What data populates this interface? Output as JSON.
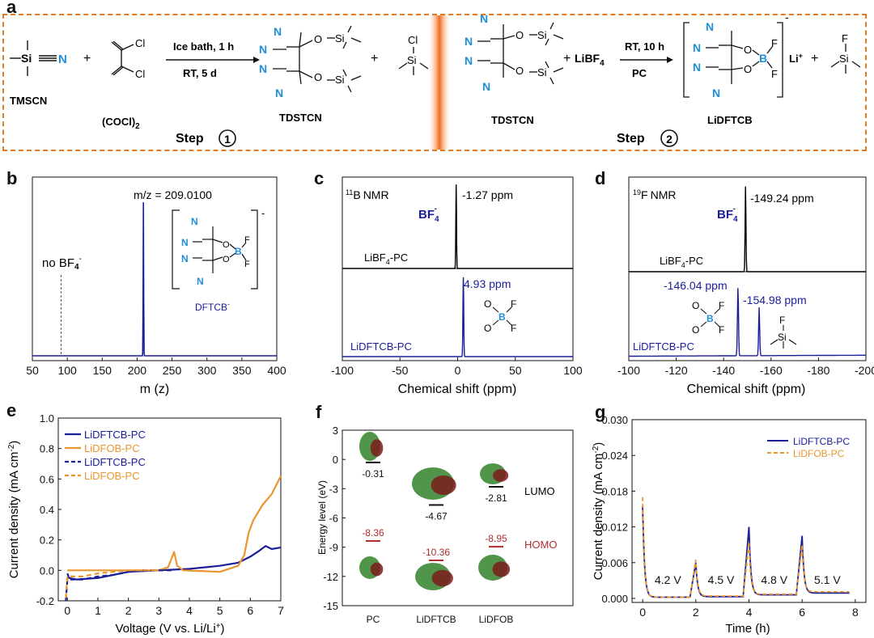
{
  "colors": {
    "navy": "#1a1e99",
    "orange": "#e9962f",
    "red": "#b22c2c",
    "cyan": "#1f8fd8",
    "green": "#3e8a36",
    "dashed_border": "#e07d22"
  },
  "panel_labels": {
    "a": "a",
    "b": "b",
    "c": "c",
    "d": "d",
    "e": "e",
    "f": "f",
    "g": "g"
  },
  "scheme": {
    "tmscn": "TMSCN",
    "oxalyl": "(COCl)",
    "oxalyl_sub": "2",
    "cond1_top": "Ice bath, 1 h",
    "cond1_bottom": "RT, 5 d",
    "tdstcn": "TDSTCN",
    "tdstcn2": "TDSTCN",
    "step": "Step",
    "step1": "1",
    "step2": "2",
    "cond2_top": "RT, 10 h",
    "cond2_bottom": "PC",
    "libf4": "LiBF",
    "libf4_sub": "4",
    "li_plus": "Li",
    "plus": "+",
    "lidftcb": "LiDFTCB",
    "charge": "-",
    "N": "N",
    "Si": "Si",
    "O": "O",
    "Cl": "Cl",
    "F": "F",
    "B": "B"
  },
  "chart_data": [
    {
      "id": "b",
      "type": "line",
      "xlabel": "m (z)",
      "xlim": [
        50,
        400
      ],
      "x_ticks": [
        "50",
        "100",
        "150",
        "200",
        "250",
        "300",
        "350",
        "400"
      ],
      "annotations": {
        "peak": "m/z = 209.0100",
        "no_bf4": "no BF",
        "anion": "DFTCB",
        "charge": "-"
      },
      "series": [
        {
          "color": "#1a1e99",
          "peaks": [
            {
              "x": 209.01,
              "height": 0.95
            }
          ],
          "baseline": 0.03
        }
      ],
      "marker_line": {
        "x": 91
      }
    },
    {
      "id": "c",
      "type": "line",
      "title": "NMR",
      "title_sup": "11",
      "title_nucleus": "B",
      "xlabel": "Chemical shift  (ppm)",
      "xlim": [
        -100,
        100
      ],
      "x_ticks": [
        "-100",
        "-50",
        "0",
        "50",
        "100"
      ],
      "series": [
        {
          "name": "LiBF4-PC",
          "label": "LiBF",
          "label_sub": "4",
          "label_tail": "-PC",
          "color": "#000000",
          "peak_ppm": -1.27,
          "peak_label": "-1.27 ppm",
          "species": "BF"
        },
        {
          "name": "LiDFTCB-PC",
          "label": "LiDFTCB-PC",
          "color": "#1a1e99",
          "peak_ppm": 4.93,
          "peak_label": "4.93 ppm"
        }
      ]
    },
    {
      "id": "d",
      "type": "line",
      "title": "NMR",
      "title_sup": "19",
      "title_nucleus": "F",
      "xlabel": "Chemical shift  (ppm)",
      "xlim": [
        -100,
        -200
      ],
      "x_ticks": [
        "-100",
        "-120",
        "-140",
        "-160",
        "-180",
        "-200"
      ],
      "series": [
        {
          "name": "LiBF4-PC",
          "label": "LiBF",
          "label_sub": "4",
          "label_tail": "-PC",
          "color": "#000000",
          "peak_ppm": -149.24,
          "peak_label": "-149.24 ppm",
          "species": "BF"
        },
        {
          "name": "LiDFTCB-PC",
          "label": "LiDFTCB-PC",
          "color": "#1a1e99",
          "peaks": [
            {
              "ppm": -146.04,
              "label": "-146.04 ppm",
              "height": 0.85
            },
            {
              "ppm": -154.98,
              "label": "-154.98 ppm",
              "height": 0.6
            }
          ]
        }
      ]
    },
    {
      "id": "e",
      "type": "line",
      "xlabel": "Voltage (V vs. Li/Li",
      "xlabel_sup": "+",
      "xlabel_end": ")",
      "ylabel": "Current density (mA cm",
      "ylabel_sup": "-2",
      "ylabel_end": ")",
      "xlim": [
        -0.3,
        7
      ],
      "ylim": [
        -0.2,
        1.0
      ],
      "x_ticks": [
        "0",
        "1",
        "2",
        "3",
        "4",
        "5",
        "6",
        "7"
      ],
      "y_ticks": [
        "-0.2",
        "0.0",
        "0.2",
        "0.4",
        "0.6",
        "0.8",
        "1.0"
      ],
      "legend": "top-left",
      "series": [
        {
          "name": "LiDFTCB-PC",
          "color": "#1a1e99",
          "style": "solid",
          "points": [
            [
              0,
              -0.02
            ],
            [
              0.05,
              -0.05
            ],
            [
              0.3,
              -0.06
            ],
            [
              1.0,
              -0.05
            ],
            [
              2.0,
              -0.01
            ],
            [
              3.0,
              0.0
            ],
            [
              4.0,
              0.01
            ],
            [
              5.0,
              0.03
            ],
            [
              5.6,
              0.05
            ],
            [
              6.0,
              0.09
            ],
            [
              6.3,
              0.13
            ],
            [
              6.5,
              0.16
            ],
            [
              6.7,
              0.14
            ],
            [
              7.0,
              0.15
            ]
          ]
        },
        {
          "name": "LiDFOB-PC",
          "color": "#e9962f",
          "style": "solid",
          "points": [
            [
              0,
              0.0
            ],
            [
              0.5,
              0.0
            ],
            [
              2.0,
              0.0
            ],
            [
              3.0,
              0.0
            ],
            [
              3.3,
              0.02
            ],
            [
              3.5,
              0.12
            ],
            [
              3.6,
              0.03
            ],
            [
              3.8,
              0.0
            ],
            [
              5.0,
              -0.01
            ],
            [
              5.6,
              0.03
            ],
            [
              5.8,
              0.1
            ],
            [
              5.95,
              0.25
            ],
            [
              6.1,
              0.33
            ],
            [
              6.4,
              0.43
            ],
            [
              6.7,
              0.5
            ],
            [
              7.0,
              0.62
            ]
          ]
        },
        {
          "name": "LiDFTCB-PC",
          "color": "#1a1e99",
          "style": "dashed",
          "points": [
            [
              -0.05,
              -0.2
            ],
            [
              0,
              -0.06
            ],
            [
              0.5,
              -0.06
            ],
            [
              1.0,
              -0.04
            ],
            [
              1.5,
              -0.03
            ],
            [
              2.0,
              -0.01
            ],
            [
              2.5,
              0.0
            ],
            [
              3.0,
              0.0
            ],
            [
              3.5,
              0.0
            ]
          ]
        },
        {
          "name": "LiDFOB-PC",
          "color": "#e9962f",
          "style": "dashed",
          "points": [
            [
              -0.05,
              -0.18
            ],
            [
              0,
              -0.04
            ],
            [
              0.5,
              -0.04
            ],
            [
              1.0,
              -0.02
            ],
            [
              1.5,
              -0.01
            ],
            [
              2.0,
              0.0
            ],
            [
              2.5,
              0.0
            ],
            [
              3.0,
              0.0
            ]
          ]
        }
      ]
    },
    {
      "id": "f",
      "type": "scatter",
      "ylabel": "Energy level (eV)",
      "ylim": [
        -15,
        3
      ],
      "y_ticks": [
        "3",
        "0",
        "-3",
        "-6",
        "-9",
        "-12",
        "-15"
      ],
      "categories": [
        "PC",
        "LiDFTCB",
        "LiDFOB"
      ],
      "lumo": [
        -0.31,
        -4.67,
        -2.81
      ],
      "homo": [
        -8.36,
        -10.36,
        -8.95
      ],
      "lumo_labels": [
        "-0.31",
        "-4.67",
        "-2.81"
      ],
      "homo_labels": [
        "-8.36",
        "-10.36",
        "-8.95"
      ],
      "lumo_text": "LUMO",
      "homo_text": "HOMO"
    },
    {
      "id": "g",
      "type": "line",
      "xlabel": "Time  (h)",
      "ylabel": "Current density (mA cm",
      "ylabel_sup": "-2",
      "ylabel_end": ")",
      "xlim": [
        -0.4,
        8.4
      ],
      "ylim": [
        0,
        0.03
      ],
      "x_ticks": [
        "0",
        "2",
        "4",
        "6",
        "8"
      ],
      "y_ticks": [
        "0.000",
        "0.006",
        "0.012",
        "0.018",
        "0.024",
        "0.030"
      ],
      "legend": "top-right",
      "step_labels": [
        "4.2 V",
        "4.5 V",
        "4.8 V",
        "5.1 V"
      ],
      "series": [
        {
          "name": "LiDFTCB-PC",
          "color": "#1a1e99",
          "style": "solid",
          "peaks": [
            0.0155,
            0.006,
            0.012,
            0.0105
          ],
          "tails": [
            0.0002,
            0.0003,
            0.0006,
            0.0009
          ]
        },
        {
          "name": "LiDFOB-PC",
          "color": "#e9962f",
          "style": "dashed",
          "peaks": [
            0.017,
            0.0065,
            0.0095,
            0.009
          ],
          "tails": [
            0.0002,
            0.0004,
            0.0007,
            0.0011
          ]
        }
      ]
    }
  ]
}
